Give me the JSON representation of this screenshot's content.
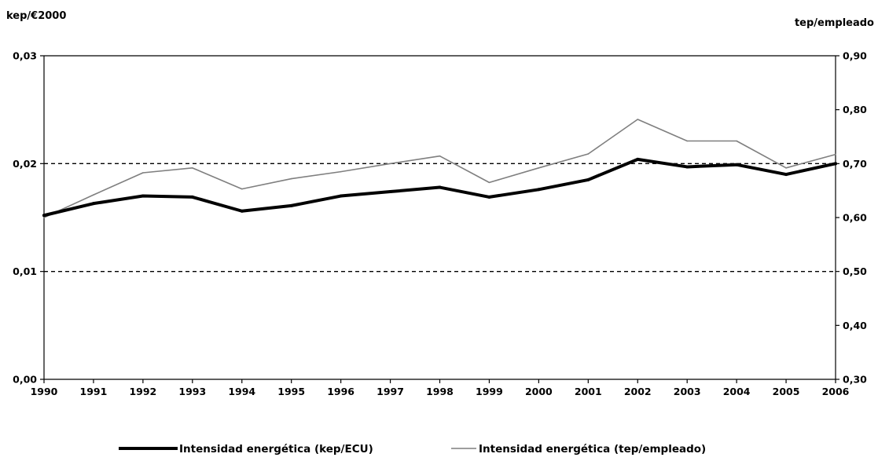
{
  "chart_data": {
    "type": "line",
    "left_axis_title": "kep/€2000",
    "right_axis_title": "tep/empleado",
    "x": [
      "1990",
      "1991",
      "1992",
      "1993",
      "1994",
      "1995",
      "1996",
      "1997",
      "1998",
      "1999",
      "2000",
      "2001",
      "2002",
      "2003",
      "2004",
      "2005",
      "2006"
    ],
    "left_ylim": [
      0,
      0.03
    ],
    "left_ticks": [
      0,
      0.01,
      0.02,
      0.03
    ],
    "left_tick_labels": [
      "0,00",
      "0,01",
      "0,02",
      "0,03"
    ],
    "right_ylim": [
      0.3,
      0.9
    ],
    "right_ticks": [
      0.3,
      0.4,
      0.5,
      0.6,
      0.7,
      0.8,
      0.9
    ],
    "right_tick_labels": [
      "0,30",
      "0,40",
      "0,50",
      "0,60",
      "0,70",
      "0,80",
      "0,90"
    ],
    "dashed_gridlines_left": [
      0.01,
      0.02
    ],
    "series": [
      {
        "name": "Intensidad energética (kep/ECU)",
        "axis": "left",
        "color": "#000000",
        "style": "thick",
        "values": [
          0.0152,
          0.0163,
          0.017,
          0.0169,
          0.0156,
          0.0161,
          0.017,
          0.0174,
          0.0178,
          0.0169,
          0.0176,
          0.0185,
          0.0204,
          0.0197,
          0.0199,
          0.019,
          0.02
        ]
      },
      {
        "name": "Intensidad energética (tep/empleado)",
        "axis": "right",
        "color": "#7f7f7f",
        "style": "thin",
        "values": [
          0.6,
          0.642,
          0.683,
          0.692,
          0.653,
          0.672,
          0.685,
          0.7,
          0.714,
          0.665,
          0.692,
          0.718,
          0.782,
          0.742,
          0.742,
          0.692,
          0.717
        ]
      }
    ],
    "legend_position": "bottom",
    "grid": "dashed at 0,01 and 0,02"
  }
}
